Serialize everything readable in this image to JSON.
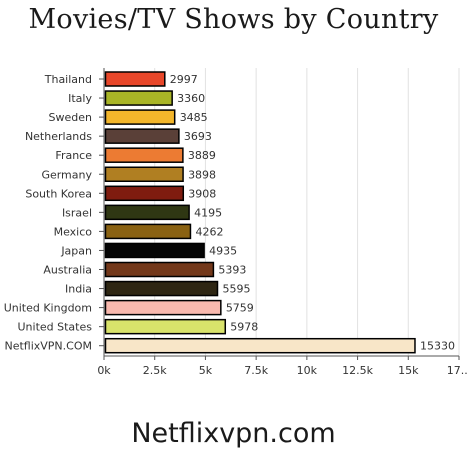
{
  "chart_data": {
    "type": "bar",
    "orientation": "horizontal",
    "title": "Movies/TV Shows by Country",
    "categories": [
      "Thailand",
      "Italy",
      "Sweden",
      "Netherlands",
      "France",
      "Germany",
      "South Korea",
      "Israel",
      "Mexico",
      "Japan",
      "Australia",
      "India",
      "United Kingdom",
      "United States",
      "NetflixVPN.COM"
    ],
    "values": [
      2997,
      3360,
      3485,
      3693,
      3889,
      3898,
      3908,
      4195,
      4262,
      4935,
      5393,
      5595,
      5759,
      5978,
      15330
    ],
    "colors": [
      "#e8472a",
      "#a9b526",
      "#f3b62b",
      "#5a4038",
      "#ec7b33",
      "#b07f22",
      "#7f1c0f",
      "#2f3713",
      "#8a6212",
      "#050505",
      "#73381a",
      "#2e2613",
      "#f9b9ae",
      "#d9e36b",
      "#f8e6c8"
    ],
    "x_ticks": [
      "0k",
      "2.5k",
      "5k",
      "7.5k",
      "10k",
      "12.5k",
      "15k",
      "17..."
    ],
    "xlim": [
      0,
      17500
    ],
    "grid": true,
    "xlabel": "",
    "ylabel": ""
  },
  "footer": "Netflixvpn.com"
}
